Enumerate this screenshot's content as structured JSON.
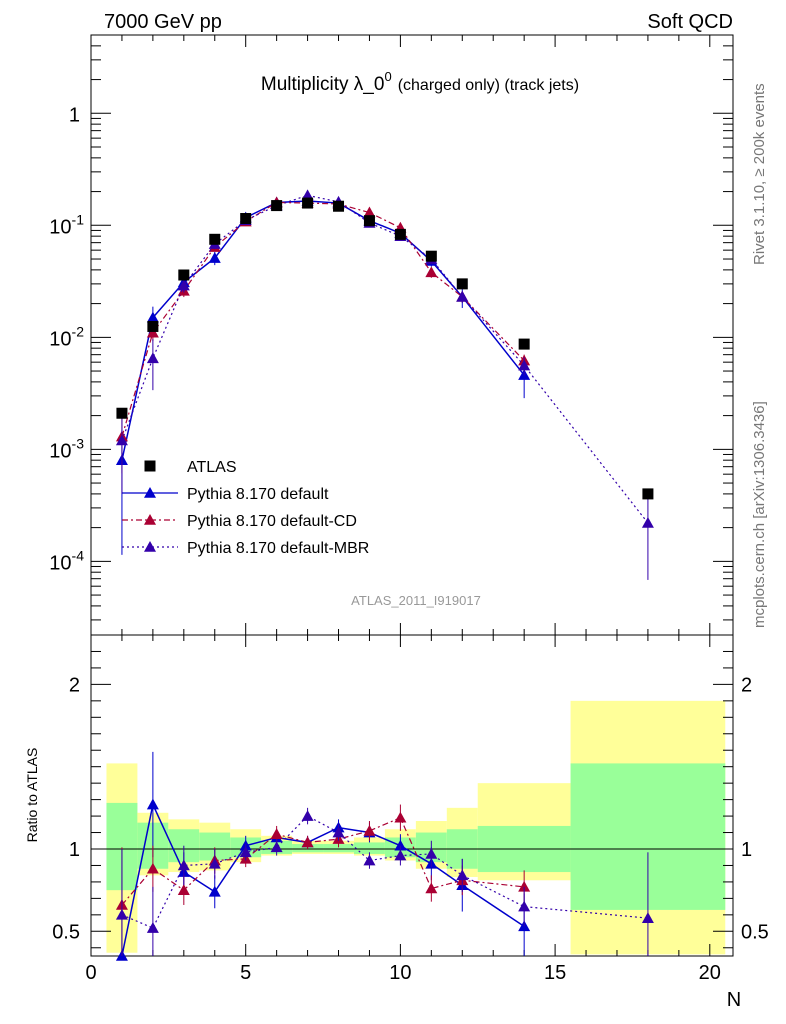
{
  "header": {
    "left": "7000 GeV pp",
    "right": "Soft QCD"
  },
  "side_labels": {
    "rivet": "Rivet 3.1.10, ≥ 200k events",
    "mcplots": "mcplots.cern.ch [arXiv:1306.3436]"
  },
  "chart_data": {
    "type": "scatter",
    "title_main": "Multiplicity λ_0",
    "title_sup": "0",
    "title_rest": "(charged only) (track jets)",
    "analysis": "ATLAS_2011_I919017",
    "xlabel": "N",
    "ylabel_ratio": "Ratio to ATLAS",
    "xlim": [
      0,
      20.75
    ],
    "ylim_main": [
      2.2e-05,
      5
    ],
    "ylog": true,
    "ylim_ratio": [
      0.35,
      2.3
    ],
    "x_ticks": [
      "0",
      "5",
      "10",
      "15",
      "20"
    ],
    "y_ticks_main": [
      "10",
      "10",
      "10",
      "10",
      "1"
    ],
    "y_ticks_main_exp": [
      "-4",
      "-3",
      "-2",
      "-1",
      ""
    ],
    "y_ticks_ratio": [
      "0.5",
      "1",
      "2"
    ],
    "legend": {
      "position": "lower-left",
      "entries": [
        "ATLAS",
        "Pythia 8.170 default",
        "Pythia 8.170 default-CD",
        "Pythia 8.170 default-MBR"
      ]
    },
    "data_series": {
      "name": "ATLAS",
      "color": "#000000",
      "x": [
        1,
        2,
        3,
        4,
        5,
        6,
        7,
        8,
        9,
        10,
        11,
        12,
        14,
        18
      ],
      "y": [
        0.0021,
        0.0125,
        0.036,
        0.075,
        0.115,
        0.15,
        0.158,
        0.148,
        0.11,
        0.083,
        0.053,
        0.03,
        0.0087,
        0.0004
      ]
    },
    "bands": {
      "edges": [
        0.5,
        1.5,
        2.5,
        3.5,
        4.5,
        5.5,
        6.5,
        7.5,
        8.5,
        9.5,
        10.5,
        11.5,
        12.5,
        15.5,
        20.5
      ],
      "green_lo": [
        0.75,
        0.88,
        0.92,
        0.93,
        0.95,
        0.97,
        0.98,
        0.98,
        0.97,
        0.95,
        0.92,
        0.88,
        0.86,
        0.63
      ],
      "green_hi": [
        1.28,
        1.16,
        1.12,
        1.1,
        1.07,
        1.05,
        1.03,
        1.03,
        1.04,
        1.07,
        1.1,
        1.12,
        1.14,
        1.52
      ],
      "yellow_lo": [
        0.37,
        0.84,
        0.86,
        0.87,
        0.92,
        0.96,
        0.97,
        0.97,
        0.96,
        0.93,
        0.88,
        0.83,
        0.81,
        0.36
      ],
      "yellow_hi": [
        1.52,
        1.22,
        1.18,
        1.16,
        1.12,
        1.08,
        1.05,
        1.05,
        1.07,
        1.12,
        1.17,
        1.25,
        1.4,
        1.9
      ],
      "green_color": "#99ff99",
      "yellow_color": "#ffff99"
    },
    "series": [
      {
        "name": "Pythia 8.170 default",
        "color": "#0000cc",
        "dash": "",
        "x": [
          1,
          2,
          3,
          4,
          5,
          6,
          7,
          8,
          9,
          10,
          11,
          12,
          14
        ],
        "y": [
          0.0008,
          0.015,
          0.031,
          0.051,
          0.117,
          0.16,
          0.165,
          0.158,
          0.11,
          0.085,
          0.048,
          0.023,
          0.0046
        ],
        "ratio": [
          0.35,
          1.27,
          0.86,
          0.74,
          1.02,
          1.07,
          1.04,
          1.13,
          1.1,
          1.02,
          0.91,
          0.78,
          0.53
        ],
        "ratio_err": [
          0.3,
          0.32,
          0.12,
          0.1,
          0.06,
          0.05,
          0.04,
          0.05,
          0.06,
          0.07,
          0.1,
          0.16,
          0.2
        ]
      },
      {
        "name": "Pythia 8.170 default-CD",
        "color": "#aa0033",
        "dash": "6,3,2,3",
        "x": [
          1,
          2,
          3,
          4,
          5,
          6,
          7,
          8,
          9,
          10,
          11,
          12,
          14
        ],
        "y": [
          0.0013,
          0.011,
          0.026,
          0.064,
          0.108,
          0.16,
          0.158,
          0.155,
          0.13,
          0.095,
          0.038,
          0.023,
          0.0062
        ],
        "ratio": [
          0.66,
          0.88,
          0.75,
          0.93,
          0.94,
          1.09,
          1.04,
          1.06,
          1.11,
          1.19,
          0.76,
          0.81,
          0.77
        ],
        "ratio_err": [
          0.35,
          0.14,
          0.09,
          0.08,
          0.05,
          0.05,
          0.04,
          0.05,
          0.06,
          0.08,
          0.08,
          0.09,
          0.1
        ]
      },
      {
        "name": "Pythia 8.170 default-MBR",
        "color": "#3300aa",
        "dash": "2,3",
        "x": [
          1,
          2,
          3,
          4,
          5,
          6,
          7,
          8,
          9,
          10,
          11,
          12,
          14,
          18
        ],
        "y": [
          0.0012,
          0.0065,
          0.029,
          0.068,
          0.111,
          0.15,
          0.185,
          0.162,
          0.105,
          0.08,
          0.05,
          0.023,
          0.0056,
          0.00022
        ],
        "ratio": [
          0.6,
          0.52,
          0.9,
          0.91,
          0.98,
          1.01,
          1.2,
          1.1,
          0.93,
          0.96,
          0.97,
          0.84,
          0.65,
          0.58
        ],
        "ratio_err": [
          0.4,
          0.25,
          0.12,
          0.09,
          0.05,
          0.05,
          0.05,
          0.05,
          0.05,
          0.06,
          0.08,
          0.1,
          0.12,
          0.4
        ]
      }
    ],
    "reference_line": 1
  }
}
